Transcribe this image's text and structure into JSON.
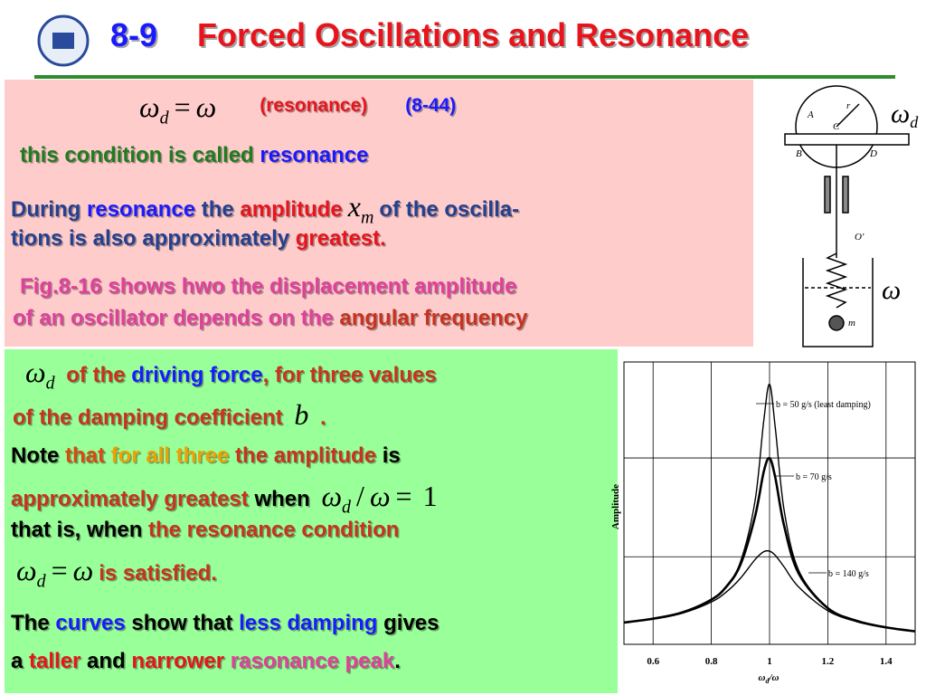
{
  "header": {
    "number": "8-9",
    "title": "Forced Oscillations and Resonance"
  },
  "resonance_panel": {
    "lines": [
      [
        {
          "math": [
            {
              "t": "ω",
              "sub": "d"
            },
            {
              "t": "="
            },
            {
              "t": "ω"
            }
          ]
        },
        {
          "text": "(resonance)",
          "color": "#e8141c"
        },
        {
          "text": "(8-44)",
          "color": "#1a1aff"
        }
      ],
      [
        {
          "text": "this condition is called ",
          "color": "#1e7d1e"
        },
        {
          "text": "resonance",
          "color": "#1a1aff"
        }
      ],
      [
        {
          "text": "During ",
          "color": "#24408e"
        },
        {
          "text": "resonance",
          "color": "#1a1aff"
        },
        {
          "text": " the ",
          "color": "#24408e"
        },
        {
          "text": "amplitude",
          "color": "#e8141c"
        },
        {
          "math": [
            {
              "t": "x",
              "sub": "m"
            }
          ]
        },
        {
          "text": "of the oscilla-",
          "color": "#24408e"
        }
      ],
      [
        {
          "text": "tions is also approximately ",
          "color": "#24408e"
        },
        {
          "text": "greatest.",
          "color": "#e8141c"
        }
      ],
      [
        {
          "text": "Fig.8-16 shows hwo the displacement amplitude",
          "color": "#e0409b"
        }
      ],
      [
        {
          "text": "of an oscillator depends on the ",
          "color": "#e0409b"
        },
        {
          "text": "angular frequency",
          "color": "#c8321e"
        }
      ]
    ]
  },
  "damping_panel": {
    "lines": [
      [
        {
          "math": [
            {
              "t": "ω",
              "sub": "d"
            }
          ]
        },
        {
          "text": " of the ",
          "color": "#c8321e"
        },
        {
          "text": "driving force",
          "color": "#1a1aff"
        },
        {
          "text": ", for three values",
          "color": "#c8321e"
        }
      ],
      [
        {
          "text": "of the damping coefficient ",
          "color": "#c8321e"
        },
        {
          "math": [
            {
              "t": "b"
            }
          ]
        },
        {
          "text": " .",
          "color": "#c8321e"
        }
      ],
      [
        {
          "text": "Note ",
          "color": "#000000"
        },
        {
          "text": "that ",
          "color": "#d84a10"
        },
        {
          "text": "for all three",
          "color": "#f0a000"
        },
        {
          "text": " the amplitude",
          "color": "#c8321e"
        },
        {
          "text": " is",
          "color": "#000000"
        }
      ],
      [
        {
          "text": "approximately greatest",
          "color": "#c8321e"
        },
        {
          "text": " when ",
          "color": "#000000"
        },
        {
          "math": [
            {
              "t": "ω",
              "sub": "d"
            },
            {
              "t": "/"
            },
            {
              "t": "ω"
            },
            {
              "t": "="
            },
            {
              "t": "1"
            }
          ]
        }
      ],
      [
        {
          "text": "that is, when ",
          "color": "#000000"
        },
        {
          "text": "the resonance condition",
          "color": "#c8321e"
        }
      ],
      [
        {
          "math": [
            {
              "t": "ω",
              "sub": "d"
            },
            {
              "t": "="
            },
            {
              "t": "ω"
            }
          ]
        },
        {
          "text": "is satisfied.",
          "color": "#c8321e"
        }
      ],
      [
        {
          "text": "The ",
          "color": "#000000"
        },
        {
          "text": "curves",
          "color": "#1a1aff"
        },
        {
          "text": " show that ",
          "color": "#000000"
        },
        {
          "text": "less damping",
          "color": "#1a1aff"
        },
        {
          "text": " gives",
          "color": "#000000"
        }
      ],
      [
        {
          "text": "a ",
          "color": "#000000"
        },
        {
          "text": "taller",
          "color": "#e8141c"
        },
        {
          "text": " and ",
          "color": "#000000"
        },
        {
          "text": "narrower",
          "color": "#e8141c"
        },
        {
          "text": " rasonance peak",
          "color": "#e0409b"
        },
        {
          "text": ".",
          "color": "#000000"
        }
      ]
    ]
  },
  "apparatus": {
    "labels": [
      "A",
      "C",
      "r",
      "B",
      "D",
      "O′",
      "m"
    ],
    "driving_symbol": {
      "t": "ω",
      "sub": "d"
    },
    "natural_symbol": "ω"
  },
  "chart_data": {
    "type": "line",
    "y_label": "Amplitude",
    "x_label": {
      "t": "ω",
      "sub": "d",
      "rest": "/ω"
    },
    "x": [
      0.5,
      0.6,
      0.7,
      0.8,
      0.85,
      0.9,
      0.95,
      0.98,
      1.0,
      1.02,
      1.05,
      1.1,
      1.2,
      1.3,
      1.4,
      1.5
    ],
    "series": [
      {
        "name": "b = 50 g/s (least damping)",
        "color": "#000000",
        "values": [
          7.7,
          9.1,
          11.4,
          16.0,
          20.5,
          29.2,
          50.7,
          79.1,
          92.1,
          76.4,
          47.5,
          26.2,
          13.0,
          8.3,
          6.0,
          4.6
        ]
      },
      {
        "name": "b = 70 g/s",
        "color": "#000000",
        "values": [
          7.7,
          9.1,
          11.3,
          15.8,
          20.2,
          28.2,
          45.2,
          61.1,
          65.9,
          58.9,
          42.0,
          25.1,
          12.8,
          8.3,
          6.0,
          4.6
        ]
      },
      {
        "name": "b = 140 g/s",
        "color": "#000000",
        "values": [
          7.7,
          8.9,
          11.0,
          15.0,
          18.4,
          23.4,
          30.0,
          32.8,
          33.0,
          31.5,
          27.4,
          20.3,
          11.9,
          8.0,
          5.9,
          4.6
        ]
      }
    ],
    "xlim": [
      0.5,
      1.5
    ],
    "ylim": [
      0,
      100
    ],
    "xticks": [
      0.6,
      0.8,
      1.0,
      1.2,
      1.4
    ],
    "ygrid": [
      66,
      31
    ],
    "grid": true
  }
}
